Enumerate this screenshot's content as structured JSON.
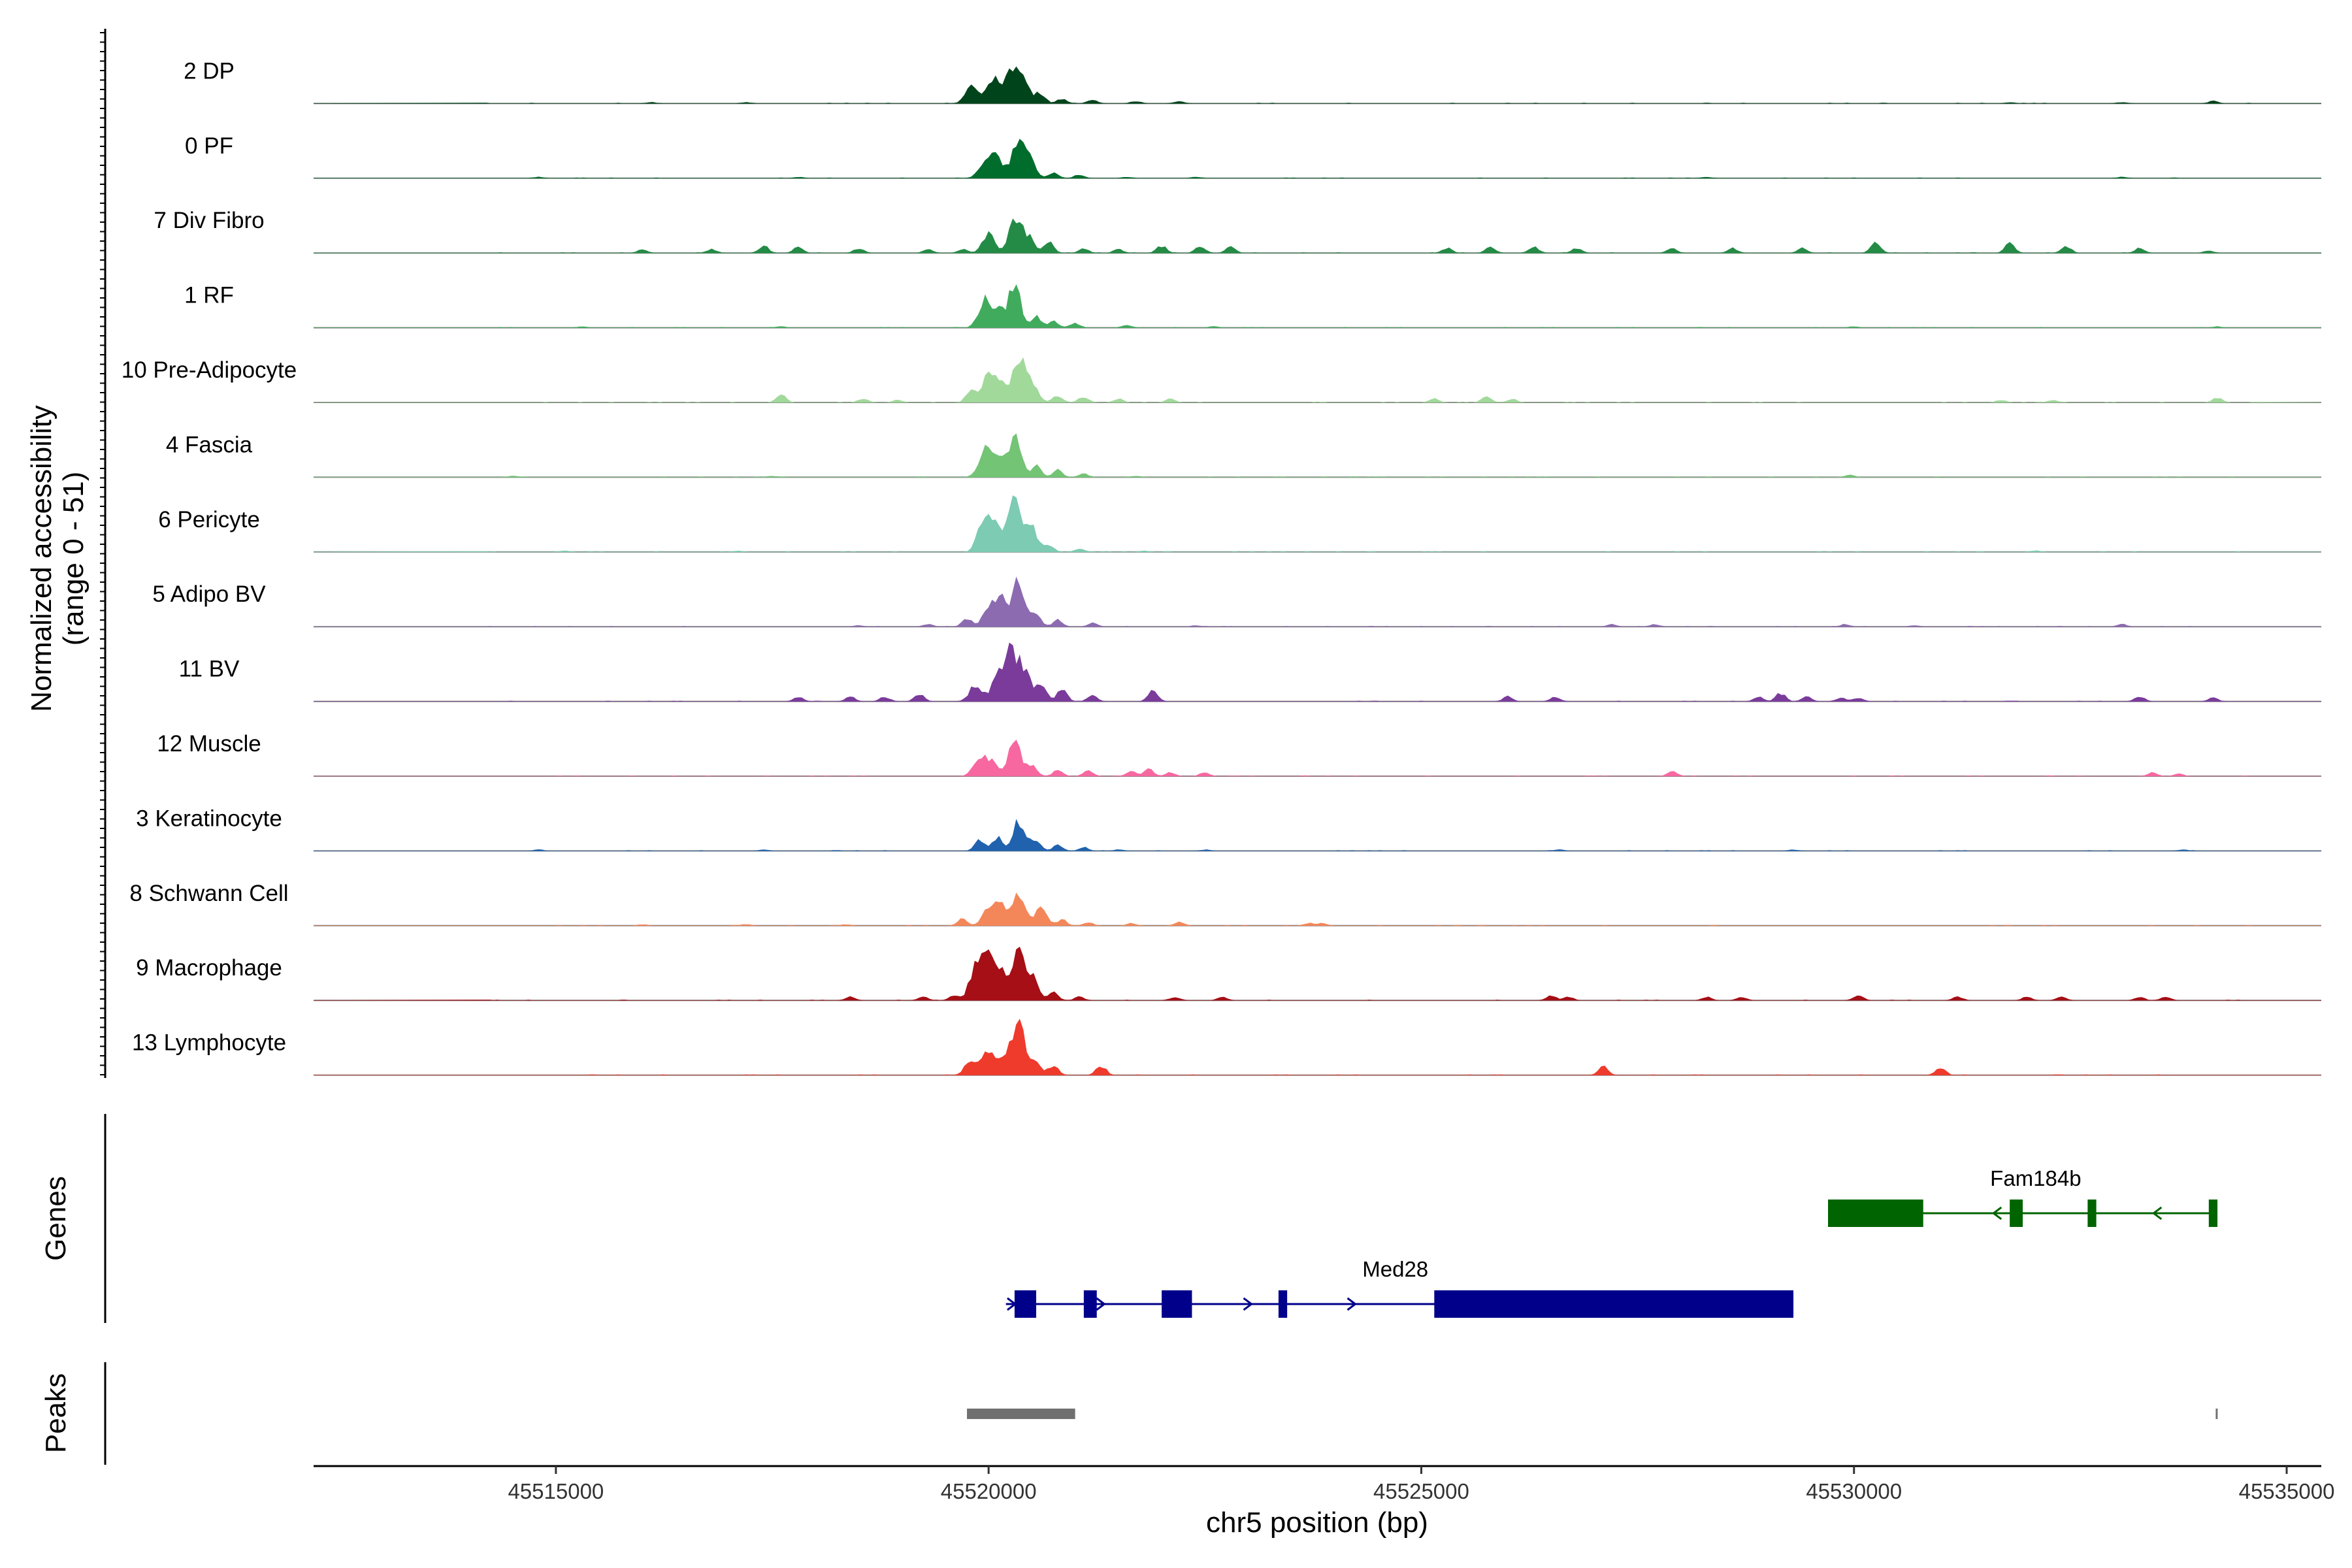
{
  "chart_data": {
    "type": "area",
    "title": "",
    "region": {
      "chrom": "chr5",
      "start": 45512200,
      "end": 45535400
    },
    "xlabel": "chr5 position (bp)",
    "ylabel": "Normalized accessibility",
    "ylabel_sub": "(range 0 - 51)",
    "yrange": [
      0,
      51
    ],
    "xticks": [
      {
        "value": 45515000,
        "label": "45515000"
      },
      {
        "value": 45520000,
        "label": "45520000"
      },
      {
        "value": 45525000,
        "label": "45525000"
      },
      {
        "value": 45530000,
        "label": "45530000"
      },
      {
        "value": 45535000,
        "label": "45535000"
      }
    ],
    "tracks": [
      {
        "name": "2 DP",
        "color": "#00441B",
        "peaks": [
          [
            45519800,
            14
          ],
          [
            45520050,
            22
          ],
          [
            45520250,
            31
          ],
          [
            45520400,
            20
          ],
          [
            45520600,
            9
          ],
          [
            45520850,
            4
          ],
          [
            45521200,
            3
          ],
          [
            45521700,
            2
          ],
          [
            45522200,
            2
          ],
          [
            45516100,
            1
          ],
          [
            45517200,
            1
          ],
          [
            45531800,
            1
          ],
          [
            45533100,
            1
          ],
          [
            45534150,
            2
          ]
        ]
      },
      {
        "name": "0 PF",
        "color": "#006D2C",
        "peaks": [
          [
            45519950,
            13
          ],
          [
            45520100,
            18
          ],
          [
            45520350,
            37
          ],
          [
            45520500,
            12
          ],
          [
            45520750,
            5
          ],
          [
            45521050,
            3
          ],
          [
            45521600,
            1
          ],
          [
            45522400,
            1
          ],
          [
            45514800,
            1
          ],
          [
            45517800,
            1
          ],
          [
            45528300,
            1
          ],
          [
            45533100,
            1
          ]
        ]
      },
      {
        "name": "7 Div Fibro",
        "color": "#238B45",
        "peaks": [
          [
            45519300,
            3
          ],
          [
            45519700,
            3
          ],
          [
            45520000,
            17
          ],
          [
            45520300,
            25
          ],
          [
            45520450,
            14
          ],
          [
            45520700,
            9
          ],
          [
            45521100,
            4
          ],
          [
            45521500,
            3
          ],
          [
            45522000,
            6
          ],
          [
            45522450,
            6
          ],
          [
            45522800,
            5
          ],
          [
            45516000,
            3
          ],
          [
            45516800,
            3
          ],
          [
            45517400,
            6
          ],
          [
            45517800,
            5
          ],
          [
            45518500,
            4
          ],
          [
            45525300,
            4
          ],
          [
            45525800,
            5
          ],
          [
            45526300,
            5
          ],
          [
            45526800,
            4
          ],
          [
            45527900,
            4
          ],
          [
            45528600,
            4
          ],
          [
            45529400,
            4
          ],
          [
            45530250,
            9
          ],
          [
            45531800,
            8
          ],
          [
            45532450,
            6
          ],
          [
            45533300,
            4
          ],
          [
            45534100,
            2
          ]
        ]
      },
      {
        "name": "1 RF",
        "color": "#41AB5D",
        "peaks": [
          [
            45519950,
            22
          ],
          [
            45520100,
            14
          ],
          [
            45520300,
            37
          ],
          [
            45520550,
            10
          ],
          [
            45520750,
            6
          ],
          [
            45521000,
            4
          ],
          [
            45521600,
            2
          ],
          [
            45522600,
            1
          ],
          [
            45515300,
            1
          ],
          [
            45517600,
            1
          ],
          [
            45530000,
            1
          ],
          [
            45534200,
            1
          ]
        ]
      },
      {
        "name": "10 Pre-Adipocyte",
        "color": "#A1D99B",
        "peaks": [
          [
            45519800,
            12
          ],
          [
            45520000,
            22
          ],
          [
            45520150,
            14
          ],
          [
            45520350,
            36
          ],
          [
            45520500,
            14
          ],
          [
            45520800,
            6
          ],
          [
            45521100,
            5
          ],
          [
            45521500,
            3
          ],
          [
            45522100,
            3
          ],
          [
            45517600,
            7
          ],
          [
            45518550,
            3
          ],
          [
            45518950,
            2
          ],
          [
            45525150,
            3
          ],
          [
            45525750,
            5
          ],
          [
            45526050,
            3
          ],
          [
            45531700,
            2
          ],
          [
            45532300,
            2
          ],
          [
            45534200,
            4
          ]
        ]
      },
      {
        "name": "4 Fascia",
        "color": "#74C476",
        "peaks": [
          [
            45519950,
            22
          ],
          [
            45520100,
            15
          ],
          [
            45520300,
            35
          ],
          [
            45520550,
            10
          ],
          [
            45520800,
            6
          ],
          [
            45521100,
            3
          ],
          [
            45521700,
            1
          ],
          [
            45514500,
            1
          ],
          [
            45517500,
            1
          ],
          [
            45529950,
            2
          ]
        ]
      },
      {
        "name": "6 Pericyte",
        "color": "#7CCBB2",
        "peaks": [
          [
            45519950,
            30
          ],
          [
            45520100,
            20
          ],
          [
            45520300,
            44
          ],
          [
            45520500,
            20
          ],
          [
            45520700,
            6
          ],
          [
            45521050,
            3
          ],
          [
            45521800,
            1
          ],
          [
            45515100,
            1
          ],
          [
            45517100,
            1
          ],
          [
            45532100,
            1
          ]
        ]
      },
      {
        "name": "5 Adipo BV",
        "color": "#8C6BB1",
        "peaks": [
          [
            45519750,
            7
          ],
          [
            45520000,
            15
          ],
          [
            45520150,
            24
          ],
          [
            45520350,
            40
          ],
          [
            45520550,
            12
          ],
          [
            45520800,
            6
          ],
          [
            45521200,
            3
          ],
          [
            45522400,
            1
          ],
          [
            45519300,
            2
          ],
          [
            45518500,
            1
          ],
          [
            45527200,
            2
          ],
          [
            45527700,
            2
          ],
          [
            45529900,
            2
          ],
          [
            45530700,
            1
          ],
          [
            45533100,
            2
          ]
        ]
      },
      {
        "name": "11 BV",
        "color": "#7A3B9B",
        "peaks": [
          [
            45519850,
            14
          ],
          [
            45520100,
            19
          ],
          [
            45520250,
            38
          ],
          [
            45520400,
            28
          ],
          [
            45520600,
            13
          ],
          [
            45520850,
            10
          ],
          [
            45521200,
            5
          ],
          [
            45519200,
            6
          ],
          [
            45518800,
            4
          ],
          [
            45518400,
            4
          ],
          [
            45517800,
            4
          ],
          [
            45513300,
            3
          ],
          [
            45521900,
            9
          ],
          [
            45526000,
            4
          ],
          [
            45526550,
            4
          ],
          [
            45528900,
            4
          ],
          [
            45529150,
            7
          ],
          [
            45529450,
            4
          ],
          [
            45529850,
            3
          ],
          [
            45530050,
            3
          ],
          [
            45533300,
            4
          ],
          [
            45534150,
            3
          ]
        ]
      },
      {
        "name": "12 Muscle",
        "color": "#F768A1",
        "peaks": [
          [
            45519900,
            18
          ],
          [
            45520050,
            12
          ],
          [
            45520300,
            34
          ],
          [
            45520500,
            10
          ],
          [
            45520800,
            5
          ],
          [
            45521150,
            5
          ],
          [
            45521650,
            4
          ],
          [
            45521850,
            6
          ],
          [
            45522100,
            3
          ],
          [
            45522500,
            3
          ],
          [
            45527900,
            4
          ],
          [
            45533450,
            3
          ],
          [
            45533750,
            2
          ]
        ]
      },
      {
        "name": "3 Keratinocyte",
        "color": "#2062AE",
        "peaks": [
          [
            45519900,
            9
          ],
          [
            45520100,
            12
          ],
          [
            45520350,
            25
          ],
          [
            45520550,
            10
          ],
          [
            45520800,
            5
          ],
          [
            45521100,
            3
          ],
          [
            45521500,
            1
          ],
          [
            45522500,
            1
          ],
          [
            45514800,
            1
          ],
          [
            45517400,
            1
          ],
          [
            45526600,
            1
          ],
          [
            45529300,
            1
          ],
          [
            45533800,
            1
          ]
        ]
      },
      {
        "name": "8 Schwann Cell",
        "color": "#F4875A",
        "peaks": [
          [
            45519700,
            6
          ],
          [
            45520000,
            14
          ],
          [
            45520150,
            18
          ],
          [
            45520350,
            26
          ],
          [
            45520600,
            14
          ],
          [
            45520850,
            5
          ],
          [
            45521150,
            3
          ],
          [
            45521650,
            2
          ],
          [
            45522200,
            3
          ],
          [
            45523700,
            2
          ],
          [
            45523850,
            2
          ],
          [
            45516000,
            1
          ],
          [
            45517200,
            1
          ],
          [
            45518350,
            1
          ]
        ]
      },
      {
        "name": "9 Macrophage",
        "color": "#A50F15",
        "peaks": [
          [
            45519850,
            29
          ],
          [
            45520000,
            36
          ],
          [
            45520150,
            25
          ],
          [
            45520350,
            44
          ],
          [
            45520500,
            18
          ],
          [
            45520750,
            7
          ],
          [
            45521050,
            3
          ],
          [
            45519600,
            4
          ],
          [
            45519250,
            3
          ],
          [
            45518400,
            3
          ],
          [
            45522150,
            3
          ],
          [
            45522700,
            3
          ],
          [
            45526500,
            4
          ],
          [
            45526700,
            3
          ],
          [
            45528300,
            3
          ],
          [
            45528700,
            3
          ],
          [
            45530050,
            4
          ],
          [
            45531200,
            3
          ],
          [
            45532000,
            3
          ],
          [
            45532400,
            3
          ],
          [
            45533300,
            3
          ],
          [
            45533600,
            3
          ]
        ]
      },
      {
        "name": "13 Lymphocyte",
        "color": "#EF3B2C",
        "peaks": [
          [
            45519800,
            13
          ],
          [
            45520000,
            22
          ],
          [
            45520200,
            15
          ],
          [
            45520350,
            46
          ],
          [
            45520550,
            12
          ],
          [
            45520750,
            9
          ],
          [
            45521300,
            8
          ],
          [
            45527100,
            7
          ],
          [
            45531000,
            7
          ]
        ]
      }
    ],
    "genes_title": "Genes",
    "genes": [
      {
        "name": "Med28",
        "strand": "+",
        "color": "#00008B",
        "start": 45520200,
        "end": 45529300,
        "exons": [
          [
            45520300,
            45520550
          ],
          [
            45521100,
            45521250
          ],
          [
            45522000,
            45522350
          ],
          [
            45523350,
            45523450
          ],
          [
            45525150,
            45529300
          ]
        ],
        "arrows": [
          45520270,
          45521300,
          45523000,
          45524200
        ]
      },
      {
        "name": "Fam184b",
        "strand": "-",
        "color": "#006400",
        "start": 45529700,
        "end": 45534200,
        "exons": [
          [
            45529700,
            45530800
          ],
          [
            45531800,
            45531950
          ],
          [
            45532700,
            45532800
          ],
          [
            45534100,
            45534200
          ]
        ],
        "arrows": [
          45531650,
          45533500
        ]
      }
    ],
    "peaks_title": "Peaks",
    "peak_regions": [
      [
        45519750,
        45521000
      ],
      [
        45534180,
        45534200
      ]
    ]
  }
}
